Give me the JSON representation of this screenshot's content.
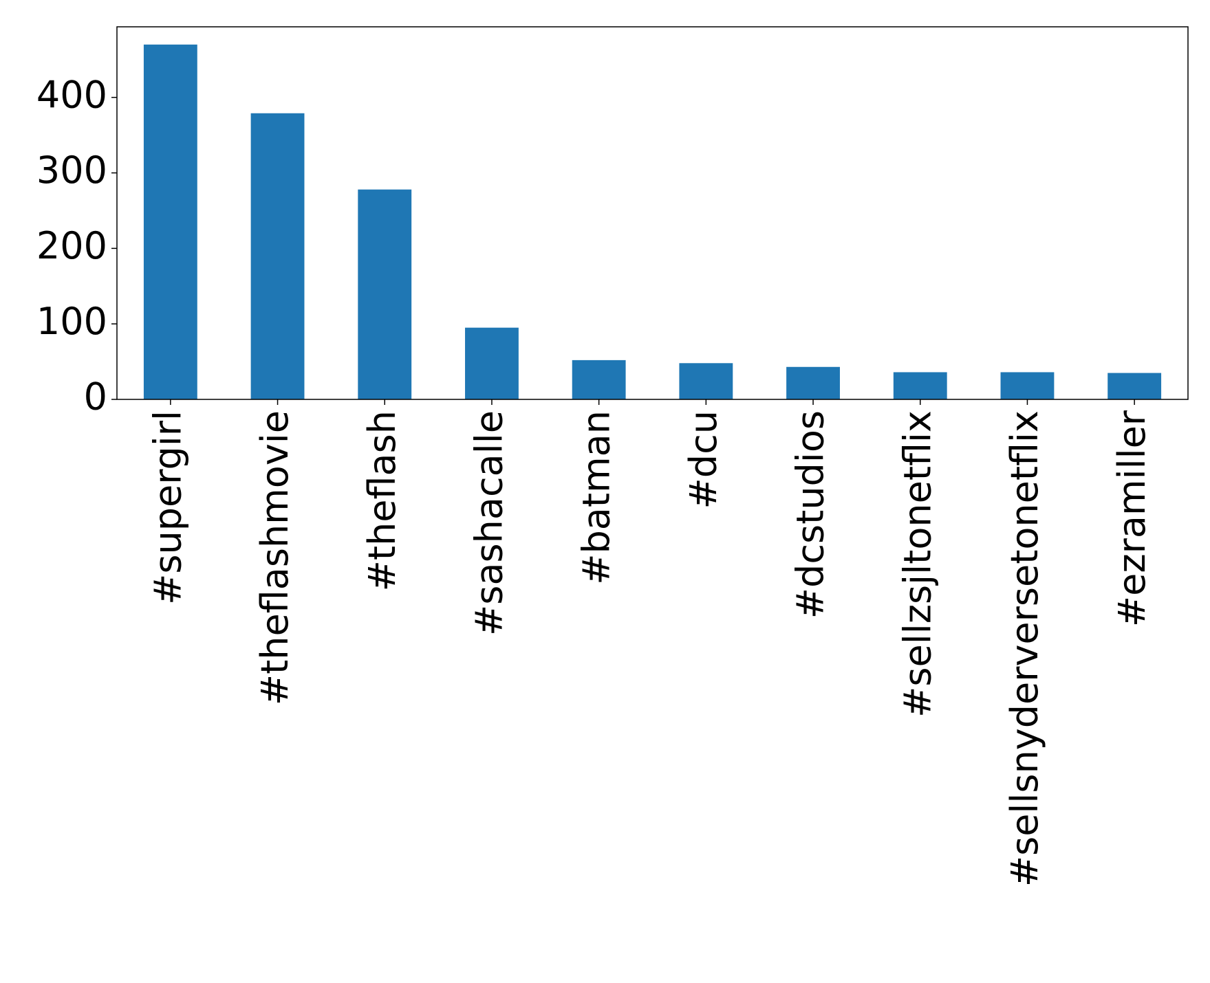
{
  "chart_data": {
    "type": "bar",
    "categories": [
      "#supergirl",
      "#theflashmovie",
      "#theflash",
      "#sashacalle",
      "#batman",
      "#dcu",
      "#dcstudios",
      "#sellzsjltonetflix",
      "#sellsnyderversetonetflix",
      "#ezramiller"
    ],
    "values": [
      470,
      379,
      278,
      95,
      52,
      48,
      43,
      36,
      36,
      35
    ],
    "color": "#1f77b4",
    "ylim": [
      0,
      493.5
    ],
    "yticks": [
      0,
      100,
      200,
      300,
      400
    ],
    "grid": false
  }
}
